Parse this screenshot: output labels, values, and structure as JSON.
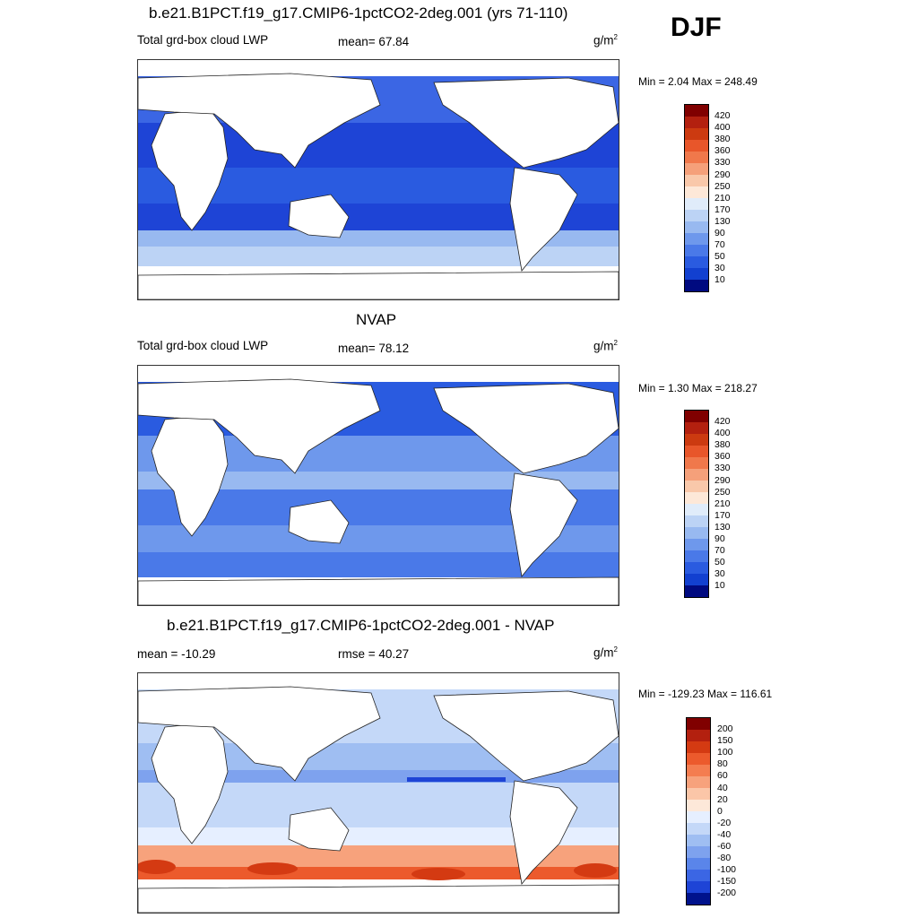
{
  "header": {
    "season": "DJF"
  },
  "panels": [
    {
      "title": "b.e21.B1PCT.f19_g17.CMIP6-1pctCO2-2deg.001 (yrs 71-110)",
      "left_label": "Total grd-box cloud LWP",
      "center_label": "mean=  67.84",
      "units": "g/m",
      "units_exp": "2",
      "minmax": "Min =   2.04 Max = 248.49",
      "colorbar": {
        "colors": [
          "#800000",
          "#b3200f",
          "#cc3a10",
          "#e8562a",
          "#f0784b",
          "#f5a07a",
          "#f9c8aa",
          "#fde8d8",
          "#e0ecfa",
          "#bcd3f5",
          "#98b9f0",
          "#6e98ec",
          "#4a79e8",
          "#2a5be0",
          "#1240d0",
          "#000a80"
        ],
        "labels": [
          "420",
          "400",
          "380",
          "360",
          "330",
          "290",
          "250",
          "210",
          "170",
          "130",
          "90",
          "70",
          "50",
          "30",
          "10"
        ]
      },
      "field": "model"
    },
    {
      "title": "NVAP",
      "left_label": "Total grd-box cloud LWP",
      "center_label": "mean=  78.12",
      "units": "g/m",
      "units_exp": "2",
      "minmax": "Min =   1.30 Max = 218.27",
      "colorbar": {
        "colors": [
          "#800000",
          "#b3200f",
          "#cc3a10",
          "#e8562a",
          "#f0784b",
          "#f5a07a",
          "#f9c8aa",
          "#fde8d8",
          "#e0ecfa",
          "#bcd3f5",
          "#98b9f0",
          "#6e98ec",
          "#4a79e8",
          "#2a5be0",
          "#1240d0",
          "#000a80"
        ],
        "labels": [
          "420",
          "400",
          "380",
          "360",
          "330",
          "290",
          "250",
          "210",
          "170",
          "130",
          "90",
          "70",
          "50",
          "30",
          "10"
        ]
      },
      "field": "obs"
    },
    {
      "title": "b.e21.B1PCT.f19_g17.CMIP6-1pctCO2-2deg.001 - NVAP",
      "left_label": "mean = -10.29",
      "center_label": "rmse =  40.27",
      "units": "g/m",
      "units_exp": "2",
      "minmax": "Min = -129.23 Max = 116.61",
      "colorbar": {
        "colors": [
          "#800000",
          "#b3200f",
          "#d43a12",
          "#ec5a2c",
          "#f47d50",
          "#f7a27c",
          "#fbc6a8",
          "#fde8d9",
          "#e6efff",
          "#c4d8f8",
          "#9fbef2",
          "#7ea2ee",
          "#5a85ea",
          "#3b66e4",
          "#1e44d6",
          "#00128c"
        ],
        "labels": [
          "200",
          "150",
          "100",
          "80",
          "60",
          "40",
          "20",
          "0",
          "-20",
          "-40",
          "-60",
          "-80",
          "-100",
          "-150",
          "-200"
        ]
      },
      "field": "diff"
    }
  ]
}
